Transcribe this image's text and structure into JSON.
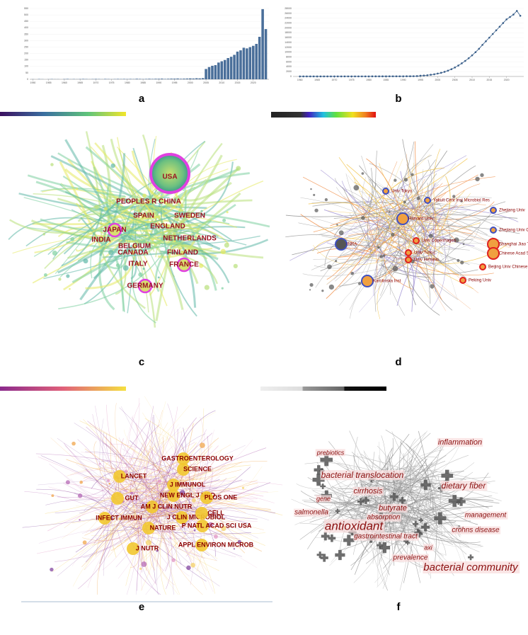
{
  "chart_data": [
    {
      "type": "bar",
      "panel_label": "a",
      "color": "#4a6f9a",
      "x": [
        1950,
        1951,
        1952,
        1953,
        1954,
        1955,
        1956,
        1957,
        1958,
        1959,
        1960,
        1961,
        1962,
        1963,
        1964,
        1965,
        1966,
        1967,
        1968,
        1969,
        1970,
        1971,
        1972,
        1973,
        1974,
        1975,
        1976,
        1977,
        1978,
        1979,
        1980,
        1981,
        1982,
        1983,
        1984,
        1985,
        1986,
        1987,
        1988,
        1989,
        1990,
        1991,
        1992,
        1993,
        1994,
        1995,
        1996,
        1997,
        1998,
        1999,
        2000,
        2001,
        2002,
        2003,
        2004,
        2005,
        2006,
        2007,
        2008,
        2009,
        2010,
        2011,
        2012,
        2013,
        2014,
        2015,
        2016,
        2017,
        2018,
        2019,
        2020,
        2021,
        2022,
        2023,
        2024
      ],
      "values": [
        1,
        0,
        2,
        1,
        0,
        1,
        2,
        1,
        1,
        0,
        2,
        3,
        1,
        2,
        1,
        2,
        3,
        2,
        1,
        2,
        3,
        2,
        1,
        3,
        2,
        1,
        2,
        3,
        2,
        3,
        2,
        3,
        2,
        4,
        3,
        2,
        3,
        4,
        3,
        4,
        4,
        5,
        3,
        4,
        5,
        5,
        6,
        4,
        5,
        6,
        7,
        6,
        8,
        7,
        9,
        80,
        95,
        105,
        110,
        130,
        140,
        150,
        165,
        175,
        190,
        215,
        225,
        245,
        240,
        250,
        260,
        275,
        330,
        545,
        390
      ],
      "xlim": [
        1949,
        2025
      ],
      "xticks": [
        1950,
        1955,
        1960,
        1965,
        1970,
        1975,
        1980,
        1985,
        1990,
        1995,
        2000,
        2005,
        2010,
        2015,
        2020
      ],
      "ylim": [
        0,
        550
      ],
      "yticks": [
        0,
        50,
        100,
        150,
        200,
        250,
        300,
        350,
        400,
        450,
        500,
        550
      ]
    },
    {
      "type": "line",
      "panel_label": "b",
      "color": "#3a5f8a",
      "x": [
        1960,
        1961,
        1962,
        1963,
        1964,
        1965,
        1966,
        1967,
        1968,
        1969,
        1970,
        1971,
        1972,
        1973,
        1974,
        1975,
        1976,
        1977,
        1978,
        1979,
        1980,
        1981,
        1982,
        1983,
        1984,
        1985,
        1986,
        1987,
        1988,
        1989,
        1990,
        1991,
        1992,
        1993,
        1994,
        1995,
        1996,
        1997,
        1998,
        1999,
        2000,
        2001,
        2002,
        2003,
        2004,
        2005,
        2006,
        2007,
        2008,
        2009,
        2010,
        2011,
        2012,
        2013,
        2014,
        2015,
        2016,
        2017,
        2018,
        2019,
        2020,
        2021,
        2022,
        2023,
        2024
      ],
      "values": [
        20,
        20,
        20,
        20,
        25,
        25,
        25,
        25,
        30,
        30,
        30,
        30,
        30,
        35,
        35,
        35,
        35,
        40,
        40,
        40,
        40,
        45,
        45,
        45,
        50,
        50,
        55,
        55,
        60,
        60,
        70,
        80,
        90,
        110,
        150,
        300,
        400,
        500,
        700,
        900,
        1200,
        1500,
        1900,
        2400,
        3000,
        3700,
        4500,
        5400,
        6400,
        7500,
        8700,
        10000,
        11400,
        13000,
        14500,
        16000,
        17500,
        19000,
        20500,
        22000,
        23500,
        24500,
        25500,
        27000,
        25000
      ],
      "xlim": [
        1958,
        2025
      ],
      "xticks": [
        1960,
        1965,
        1970,
        1975,
        1980,
        1985,
        1990,
        1995,
        2000,
        2005,
        2010,
        2015,
        2020
      ],
      "ylim": [
        0,
        28000
      ],
      "yticks": [
        0,
        2000,
        4000,
        6000,
        8000,
        10000,
        12000,
        14000,
        16000,
        18000,
        20000,
        22000,
        24000,
        26000,
        28000
      ]
    }
  ],
  "networks": [
    {
      "panel_label": "c",
      "labels": [
        "USA",
        "PEOPLES R CHINA",
        "SPAIN",
        "SWEDEN",
        "ENGLAND",
        "JAPAN",
        "NETHERLANDS",
        "INDIA",
        "BELGIUM",
        "CANADA",
        "FINLAND",
        "ITALY",
        "FRANCE",
        "GERMANY"
      ]
    },
    {
      "panel_label": "d",
      "labels": [
        "Univ Tokyo",
        "Yakult Cent Inst Microbiol Res",
        "Harvard Univ",
        "Zhejiang Univ",
        "Zhejiang Univ Chinese Med",
        "INRA",
        "Univ Copenhagen",
        "Shanghai Jiao Tong Univ",
        "Chinese Acad Sci",
        "Univ Turku",
        "Univ Helsinki",
        "Beijing Univ Chinese Med",
        "Karolinska Inst",
        "Peking Univ"
      ]
    },
    {
      "panel_label": "e",
      "labels": [
        "GASTROENTEROLOGY",
        "SCIENCE",
        "LANCET",
        "J IMMUNOL",
        "NEW ENGL J MED",
        "PLOS ONE",
        "GUT",
        "AM J CLIN NUTR",
        "J CLIN MICROBIOL",
        "CELL",
        "INFECT IMMUN",
        "NATURE",
        "P NATL ACAD SCI USA",
        "APPL ENVIRON MICROB",
        "J NUTR"
      ]
    },
    {
      "panel_label": "f",
      "labels": [
        "inflammation",
        "prebiotics",
        "bacterial translocation",
        "dietary fiber",
        "cirrhosis",
        "gene",
        "butyrate",
        "salmonella",
        "absorption",
        "management",
        "antioxidant",
        "crohns disease",
        "gastrointestinal tract",
        "axi",
        "prevalence",
        "bacterial community"
      ]
    }
  ]
}
